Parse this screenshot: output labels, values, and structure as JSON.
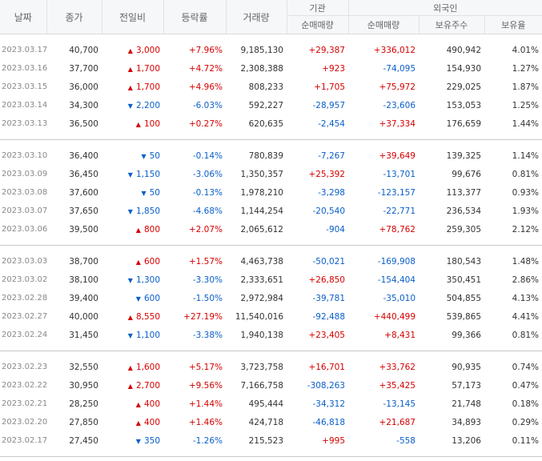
{
  "headers": {
    "date": "날짜",
    "close": "종가",
    "change": "전일비",
    "rate": "등락률",
    "volume": "거래량",
    "institution": "기관",
    "foreign": "외국인",
    "inst_net": "순매매량",
    "for_net": "순매매량",
    "holdings": "보유주수",
    "ratio": "보유율"
  },
  "groups": [
    [
      {
        "date": "2023.03.17",
        "close": "40,700",
        "dir": "up",
        "change": "3,000",
        "rate": "+7.96%",
        "volume": "9,185,130",
        "inst": "+29,387",
        "frn": "+336,012",
        "hold": "490,942",
        "ratio": "4.01%"
      },
      {
        "date": "2023.03.16",
        "close": "37,700",
        "dir": "up",
        "change": "1,700",
        "rate": "+4.72%",
        "volume": "2,308,388",
        "inst": "+923",
        "frn": "-74,095",
        "hold": "154,930",
        "ratio": "1.27%"
      },
      {
        "date": "2023.03.15",
        "close": "36,000",
        "dir": "up",
        "change": "1,700",
        "rate": "+4.96%",
        "volume": "808,233",
        "inst": "+1,705",
        "frn": "+75,972",
        "hold": "229,025",
        "ratio": "1.87%"
      },
      {
        "date": "2023.03.14",
        "close": "34,300",
        "dir": "down",
        "change": "2,200",
        "rate": "-6.03%",
        "volume": "592,227",
        "inst": "-28,957",
        "frn": "-23,606",
        "hold": "153,053",
        "ratio": "1.25%"
      },
      {
        "date": "2023.03.13",
        "close": "36,500",
        "dir": "up",
        "change": "100",
        "rate": "+0.27%",
        "volume": "620,635",
        "inst": "-2,454",
        "frn": "+37,334",
        "hold": "176,659",
        "ratio": "1.44%"
      }
    ],
    [
      {
        "date": "2023.03.10",
        "close": "36,400",
        "dir": "down",
        "change": "50",
        "rate": "-0.14%",
        "volume": "780,839",
        "inst": "-7,267",
        "frn": "+39,649",
        "hold": "139,325",
        "ratio": "1.14%"
      },
      {
        "date": "2023.03.09",
        "close": "36,450",
        "dir": "down",
        "change": "1,150",
        "rate": "-3.06%",
        "volume": "1,350,357",
        "inst": "+25,392",
        "frn": "-13,701",
        "hold": "99,676",
        "ratio": "0.81%"
      },
      {
        "date": "2023.03.08",
        "close": "37,600",
        "dir": "down",
        "change": "50",
        "rate": "-0.13%",
        "volume": "1,978,210",
        "inst": "-3,298",
        "frn": "-123,157",
        "hold": "113,377",
        "ratio": "0.93%"
      },
      {
        "date": "2023.03.07",
        "close": "37,650",
        "dir": "down",
        "change": "1,850",
        "rate": "-4.68%",
        "volume": "1,144,254",
        "inst": "-20,540",
        "frn": "-22,771",
        "hold": "236,534",
        "ratio": "1.93%"
      },
      {
        "date": "2023.03.06",
        "close": "39,500",
        "dir": "up",
        "change": "800",
        "rate": "+2.07%",
        "volume": "2,065,612",
        "inst": "-904",
        "frn": "+78,762",
        "hold": "259,305",
        "ratio": "2.12%"
      }
    ],
    [
      {
        "date": "2023.03.03",
        "close": "38,700",
        "dir": "up",
        "change": "600",
        "rate": "+1.57%",
        "volume": "4,463,738",
        "inst": "-50,021",
        "frn": "-169,908",
        "hold": "180,543",
        "ratio": "1.48%"
      },
      {
        "date": "2023.03.02",
        "close": "38,100",
        "dir": "down",
        "change": "1,300",
        "rate": "-3.30%",
        "volume": "2,333,651",
        "inst": "+26,850",
        "frn": "-154,404",
        "hold": "350,451",
        "ratio": "2.86%"
      },
      {
        "date": "2023.02.28",
        "close": "39,400",
        "dir": "down",
        "change": "600",
        "rate": "-1.50%",
        "volume": "2,972,984",
        "inst": "-39,781",
        "frn": "-35,010",
        "hold": "504,855",
        "ratio": "4.13%"
      },
      {
        "date": "2023.02.27",
        "close": "40,000",
        "dir": "up",
        "change": "8,550",
        "rate": "+27.19%",
        "volume": "11,540,016",
        "inst": "-92,488",
        "frn": "+440,499",
        "hold": "539,865",
        "ratio": "4.41%"
      },
      {
        "date": "2023.02.24",
        "close": "31,450",
        "dir": "down",
        "change": "1,100",
        "rate": "-3.38%",
        "volume": "1,940,138",
        "inst": "+23,405",
        "frn": "+8,431",
        "hold": "99,366",
        "ratio": "0.81%"
      }
    ],
    [
      {
        "date": "2023.02.23",
        "close": "32,550",
        "dir": "up",
        "change": "1,600",
        "rate": "+5.17%",
        "volume": "3,723,758",
        "inst": "+16,701",
        "frn": "+33,762",
        "hold": "90,935",
        "ratio": "0.74%"
      },
      {
        "date": "2023.02.22",
        "close": "30,950",
        "dir": "up",
        "change": "2,700",
        "rate": "+9.56%",
        "volume": "7,166,758",
        "inst": "-308,263",
        "frn": "+35,425",
        "hold": "57,173",
        "ratio": "0.47%"
      },
      {
        "date": "2023.02.21",
        "close": "28,250",
        "dir": "up",
        "change": "400",
        "rate": "+1.44%",
        "volume": "495,444",
        "inst": "-34,312",
        "frn": "-13,145",
        "hold": "21,748",
        "ratio": "0.18%"
      },
      {
        "date": "2023.02.20",
        "close": "27,850",
        "dir": "up",
        "change": "400",
        "rate": "+1.46%",
        "volume": "424,718",
        "inst": "-46,818",
        "frn": "+21,687",
        "hold": "34,893",
        "ratio": "0.29%"
      },
      {
        "date": "2023.02.17",
        "close": "27,450",
        "dir": "down",
        "change": "350",
        "rate": "-1.26%",
        "volume": "215,523",
        "inst": "+995",
        "frn": "-558",
        "hold": "13,206",
        "ratio": "0.11%"
      }
    ]
  ],
  "colors": {
    "up": "#d60000",
    "down": "#0a5fc9"
  }
}
